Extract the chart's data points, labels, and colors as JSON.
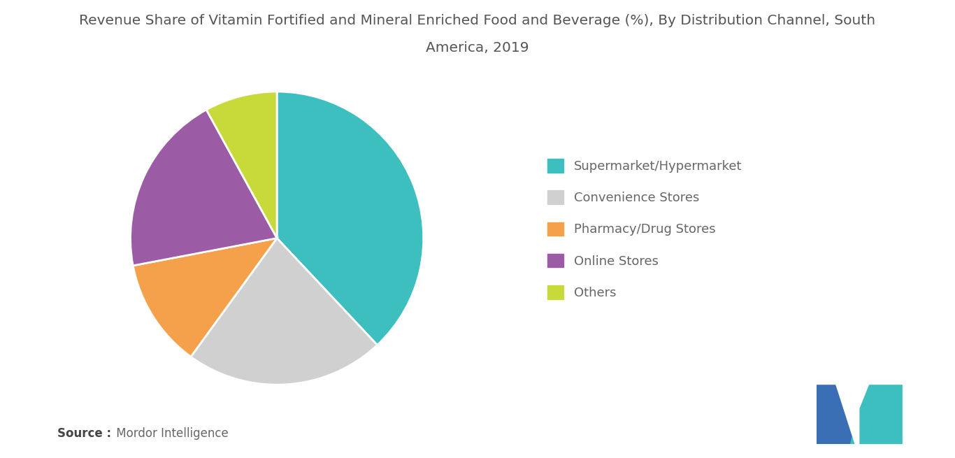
{
  "title_line1": "Revenue Share of Vitamin Fortified and Mineral Enriched Food and Beverage (%), By Distribution Channel, South",
  "title_line2": "America, 2019",
  "labels": [
    "Supermarket/Hypermarket",
    "Convenience Stores",
    "Pharmacy/Drug Stores",
    "Online Stores",
    "Others"
  ],
  "sizes": [
    38,
    22,
    12,
    20,
    8
  ],
  "colors": [
    "#3dbfbf",
    "#d0d0d0",
    "#f5a04a",
    "#9b5ca5",
    "#c8d93a"
  ],
  "startangle": 90,
  "source_bold": "Source :",
  "source_normal": " Mordor Intelligence",
  "background_color": "#ffffff",
  "title_fontsize": 14.5,
  "legend_fontsize": 13,
  "source_fontsize": 12,
  "logo_color_left": "#3a7ca5",
  "logo_color_right": "#3dbfbf",
  "logo_color_dark": "#2a5a7a"
}
